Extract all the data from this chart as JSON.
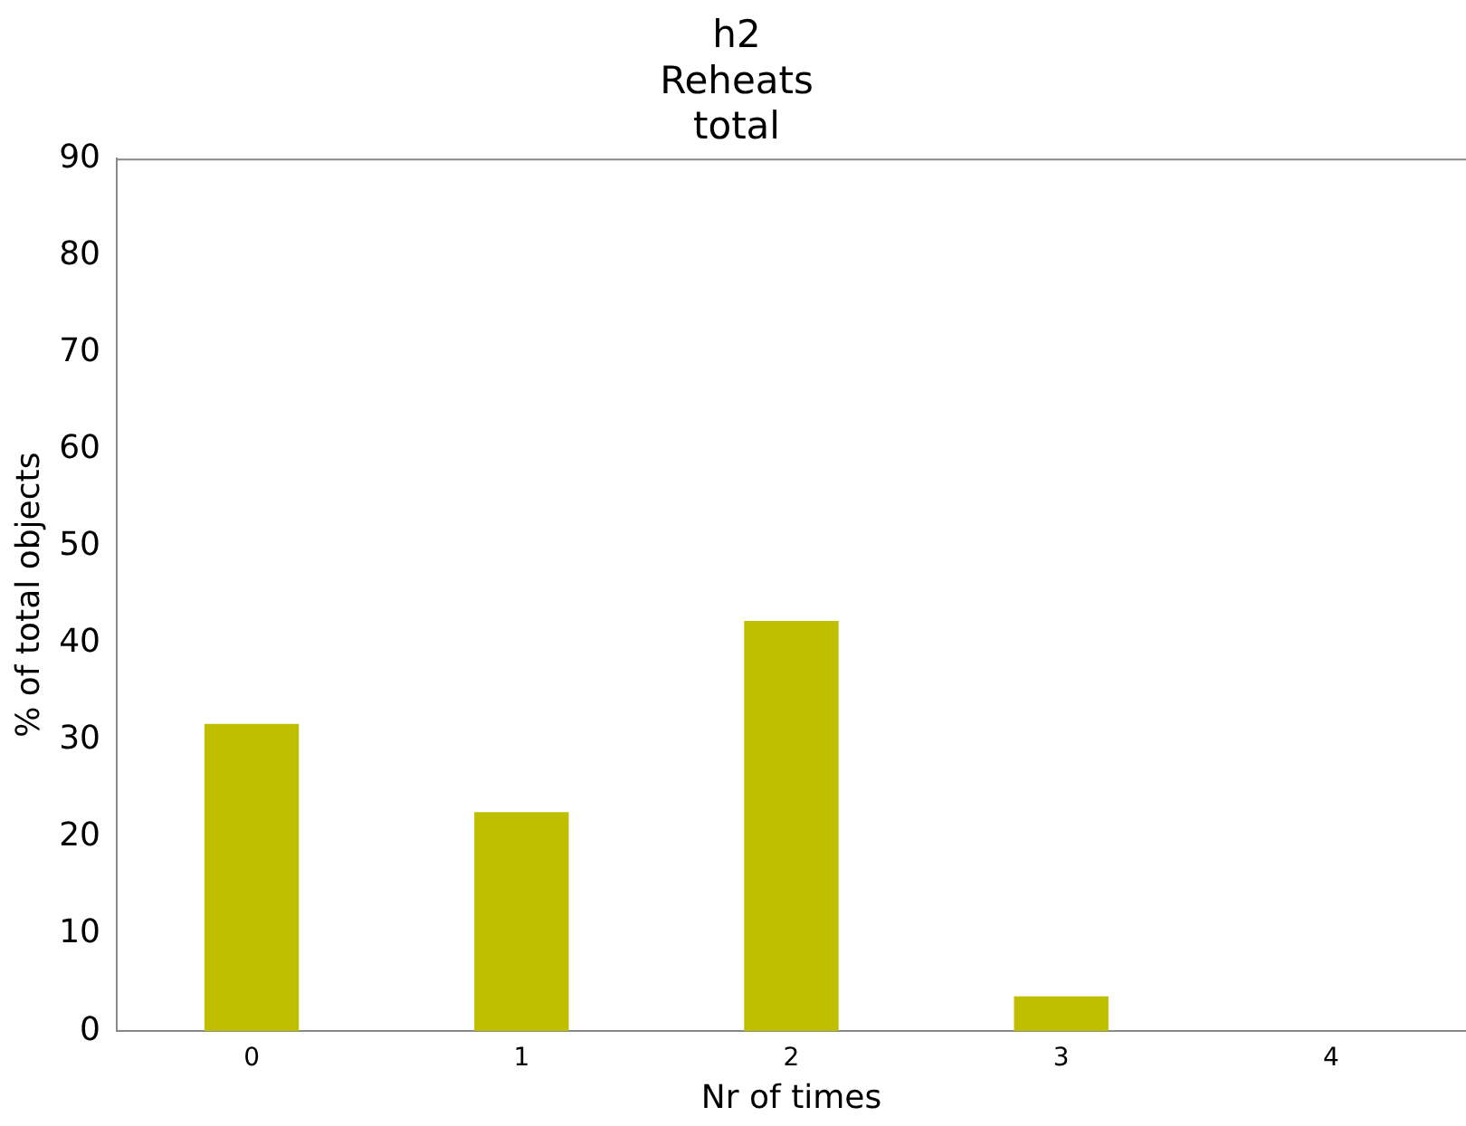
{
  "chart_data": {
    "type": "bar",
    "title": "h2\nReheats\ntotal",
    "xlabel": "Nr of times",
    "ylabel": "% of total objects",
    "categories": [
      "0",
      "1",
      "2",
      "3",
      "4"
    ],
    "values": [
      31.7,
      22.6,
      42.3,
      3.6,
      0
    ],
    "color": "#bfbf00",
    "ylim": [
      0,
      90
    ],
    "yticks": [
      0,
      10,
      20,
      30,
      40,
      50,
      60,
      70,
      80,
      90
    ],
    "grid": false,
    "legend": false
  }
}
